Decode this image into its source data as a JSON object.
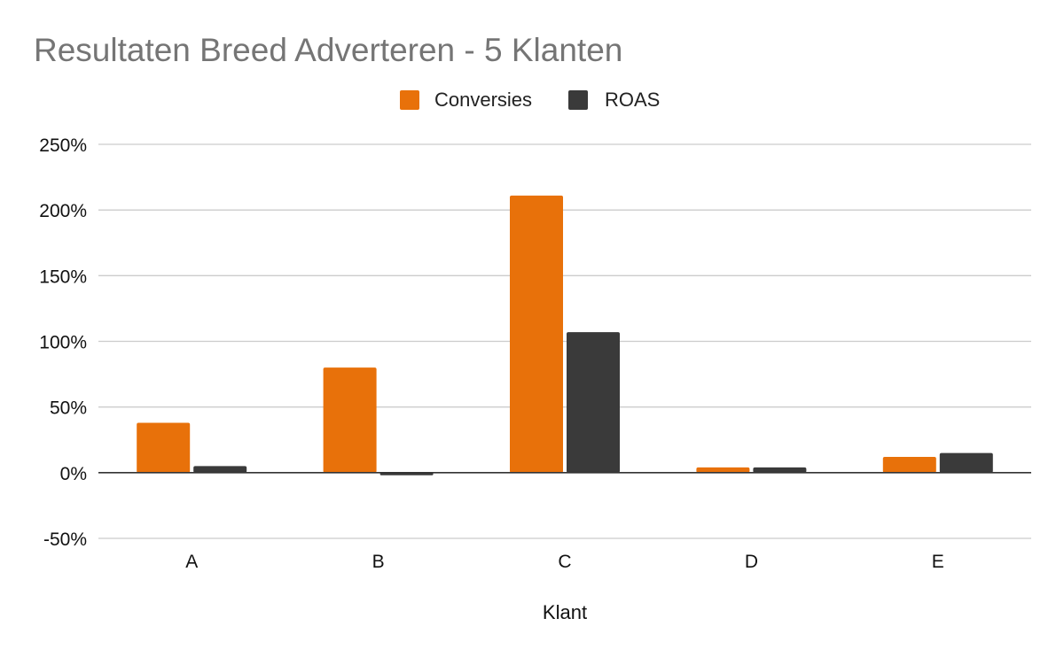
{
  "chart_data": {
    "type": "bar",
    "title": "Resultaten Breed Adverteren - 5 Klanten",
    "xlabel": "Klant",
    "ylabel": "",
    "categories": [
      "A",
      "B",
      "C",
      "D",
      "E"
    ],
    "series": [
      {
        "name": "Conversies",
        "color": "#e8710a",
        "values": [
          0.38,
          0.8,
          2.11,
          0.04,
          0.12
        ]
      },
      {
        "name": "ROAS",
        "color": "#3a3a3a",
        "values": [
          0.05,
          -0.02,
          1.07,
          0.04,
          0.15
        ]
      }
    ],
    "ylim": [
      -0.5,
      2.5
    ],
    "yticks": [
      2.5,
      2.0,
      1.5,
      1.0,
      0.5,
      0,
      -0.5
    ],
    "ytick_labels": [
      "250%",
      "200%",
      "150%",
      "100%",
      "50%",
      "0%",
      "-50%"
    ],
    "grid": true,
    "legend_position": "top"
  }
}
